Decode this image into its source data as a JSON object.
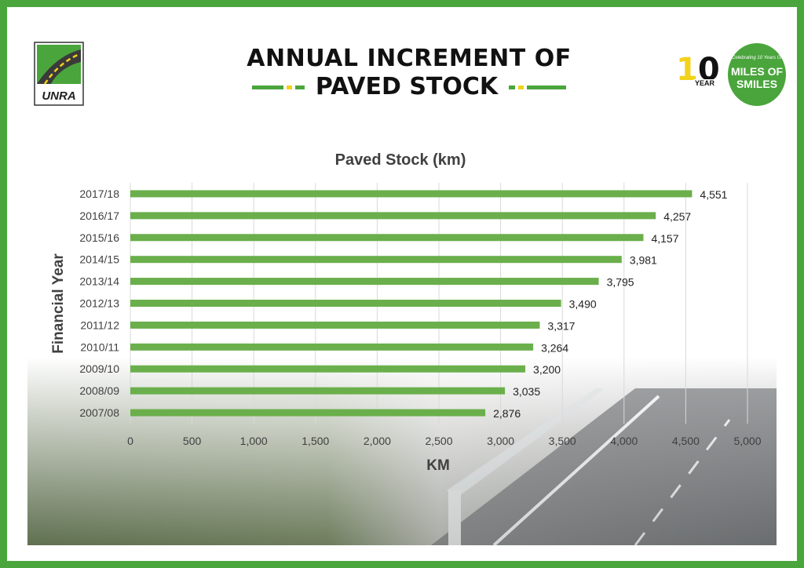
{
  "header": {
    "title_line1": "ANNUAL INCREMENT OF",
    "title_line2": "PAVED STOCK",
    "logo_left_text": "UNRA",
    "logo_right": {
      "ten": "10",
      "year": "YEAR",
      "celebrating": "Celebrating 10 Years Of",
      "miles_line1": "MILES OF",
      "miles_line2": "SMILES"
    }
  },
  "colors": {
    "bar": "#6aaf4b",
    "frame": "#4aa53c",
    "accent_yellow": "#f2d21a",
    "grid": "#d9d9d9",
    "text": "#404040"
  },
  "chart_data": {
    "type": "bar",
    "orientation": "horizontal",
    "title": "Paved Stock (km)",
    "xlabel": "KM",
    "ylabel": "Financial Year",
    "categories": [
      "2017/18",
      "2016/17",
      "2015/16",
      "2014/15",
      "2013/14",
      "2012/13",
      "2011/12",
      "2010/11",
      "2009/10",
      "2008/09",
      "2007/08"
    ],
    "values": [
      4551,
      4257,
      4157,
      3981,
      3795,
      3490,
      3317,
      3264,
      3200,
      3035,
      2876
    ],
    "value_labels": [
      "4,551",
      "4,257",
      "4,157",
      "3,981",
      "3,795",
      "3,490",
      "3,317",
      "3,264",
      "3,200",
      "3,035",
      "2,876"
    ],
    "xlim": [
      0,
      5000
    ],
    "xticks": [
      0,
      500,
      1000,
      1500,
      2000,
      2500,
      3000,
      3500,
      4000,
      4500,
      5000
    ],
    "xtick_labels": [
      "0",
      "500",
      "1,000",
      "1,500",
      "2,000",
      "2,500",
      "3,000",
      "3,500",
      "4,000",
      "4,500",
      "5,000"
    ],
    "grid": true,
    "legend": "none"
  }
}
